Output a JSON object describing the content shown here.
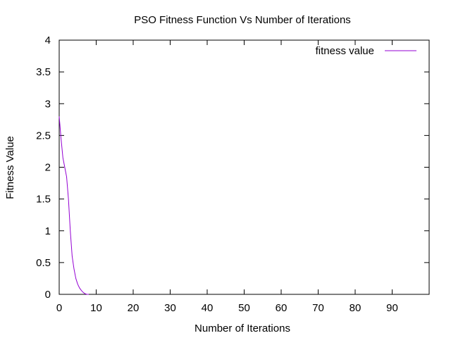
{
  "chart_data": {
    "type": "line",
    "title": "PSO Fitness Function Vs Number of Iterations",
    "xlabel": "Number of Iterations",
    "ylabel": "Fitness Value",
    "xlim": [
      0,
      100
    ],
    "ylim": [
      0,
      4
    ],
    "xticks": [
      "0",
      "10",
      "20",
      "30",
      "40",
      "50",
      "60",
      "70",
      "80",
      "90"
    ],
    "yticks": [
      "0",
      "0.5",
      "1",
      "1.5",
      "2",
      "2.5",
      "3",
      "3.5",
      "4"
    ],
    "grid": false,
    "legend_position": "top-right",
    "series": [
      {
        "name": "fitness value",
        "color": "#9400d3",
        "x": [
          0,
          0.5,
          1,
          1.5,
          2,
          2.5,
          3,
          3.5,
          4,
          4.5,
          5,
          5.5,
          6,
          6.5,
          7,
          7.5,
          8
        ],
        "y": [
          2.8,
          2.45,
          2.15,
          2.0,
          1.85,
          1.5,
          1.0,
          0.6,
          0.4,
          0.25,
          0.16,
          0.1,
          0.06,
          0.03,
          0.01,
          0.0,
          0.0
        ]
      }
    ]
  }
}
